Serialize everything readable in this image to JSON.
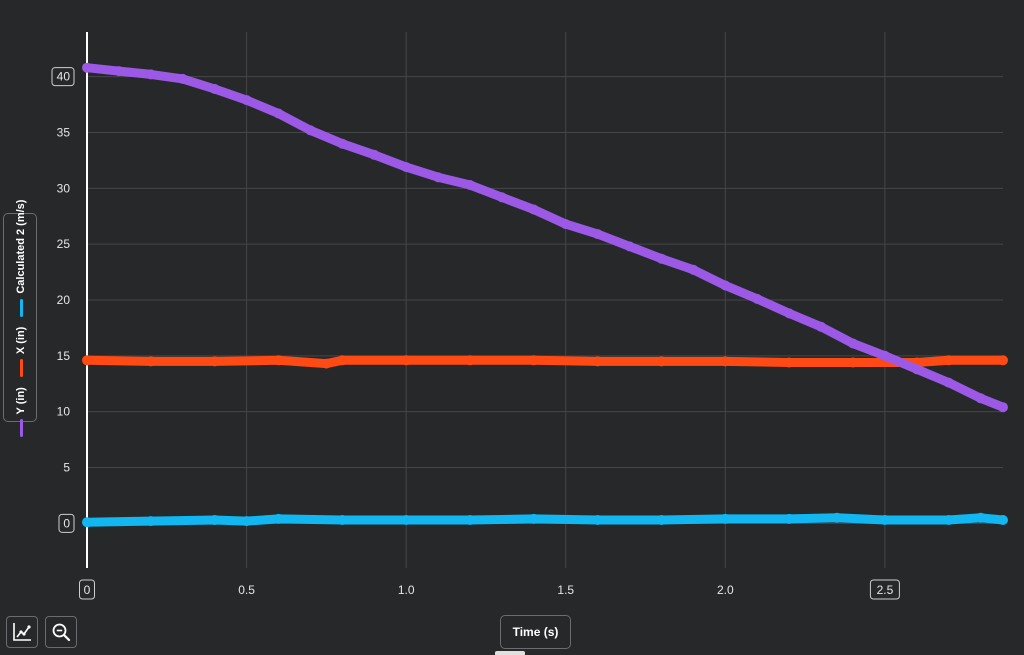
{
  "chart_data": {
    "type": "scatter",
    "xlabel": "Time (s)",
    "ylabel": "",
    "xlim": [
      0,
      2.87
    ],
    "ylim": [
      -4,
      44
    ],
    "grid": true,
    "legend_placement": "left",
    "x_ticks": [
      "0",
      "0.5",
      "1.0",
      "1.5",
      "2.0",
      "2.5"
    ],
    "x_tick_values": [
      0,
      0.5,
      1.0,
      1.5,
      2.0,
      2.5
    ],
    "x_ticks_boxed": [
      "0",
      "2.5"
    ],
    "y_ticks": [
      "0",
      "5",
      "10",
      "15",
      "20",
      "25",
      "30",
      "35",
      "40"
    ],
    "y_tick_values": [
      0,
      5,
      10,
      15,
      20,
      25,
      30,
      35,
      40
    ],
    "y_ticks_boxed": [
      "0",
      "40"
    ],
    "series": [
      {
        "name": "Y (in)",
        "color": "#9b59e6",
        "x": [
          0,
          0.1,
          0.2,
          0.3,
          0.4,
          0.5,
          0.6,
          0.7,
          0.8,
          0.9,
          1.0,
          1.1,
          1.2,
          1.3,
          1.4,
          1.5,
          1.6,
          1.7,
          1.8,
          1.9,
          2.0,
          2.1,
          2.2,
          2.3,
          2.4,
          2.5,
          2.6,
          2.7,
          2.8,
          2.87
        ],
        "values": [
          40.8,
          40.5,
          40.2,
          39.8,
          38.9,
          37.9,
          36.7,
          35.2,
          34.0,
          33.0,
          31.9,
          31.0,
          30.3,
          29.2,
          28.1,
          26.8,
          25.9,
          24.8,
          23.7,
          22.7,
          21.3,
          20.1,
          18.8,
          17.6,
          16.1,
          15.0,
          13.8,
          12.6,
          11.2,
          10.4
        ]
      },
      {
        "name": "X (in)",
        "color": "#ff4a14",
        "x": [
          0,
          0.2,
          0.4,
          0.6,
          0.75,
          0.8,
          1.0,
          1.2,
          1.4,
          1.6,
          1.8,
          2.0,
          2.2,
          2.4,
          2.6,
          2.7,
          2.87
        ],
        "values": [
          14.6,
          14.5,
          14.5,
          14.6,
          14.3,
          14.6,
          14.6,
          14.6,
          14.6,
          14.5,
          14.5,
          14.5,
          14.4,
          14.4,
          14.4,
          14.6,
          14.6
        ]
      },
      {
        "name": "Calculated 2 (m/s)",
        "color": "#12b6f0",
        "x": [
          0,
          0.2,
          0.4,
          0.5,
          0.6,
          0.8,
          1.0,
          1.2,
          1.4,
          1.6,
          1.8,
          2.0,
          2.2,
          2.35,
          2.5,
          2.7,
          2.8,
          2.87
        ],
        "values": [
          0.1,
          0.2,
          0.3,
          0.2,
          0.4,
          0.3,
          0.3,
          0.3,
          0.4,
          0.3,
          0.3,
          0.4,
          0.4,
          0.5,
          0.3,
          0.3,
          0.5,
          0.3
        ]
      }
    ]
  },
  "legend": {
    "items": [
      {
        "label": "Calculated 2 (m/s)",
        "color": "#12b6f0"
      },
      {
        "label": "X (in)",
        "color": "#ff4a14"
      },
      {
        "label": "Y (in)",
        "color": "#9b59e6"
      }
    ]
  },
  "toolbar": {
    "graph_tools_icon": "chart-line-icon",
    "zoom_icon": "zoom-out-icon"
  },
  "colors": {
    "background": "#27282a",
    "grid": "#44464a",
    "axis": "#ffffff",
    "border": "#6a6c70"
  }
}
